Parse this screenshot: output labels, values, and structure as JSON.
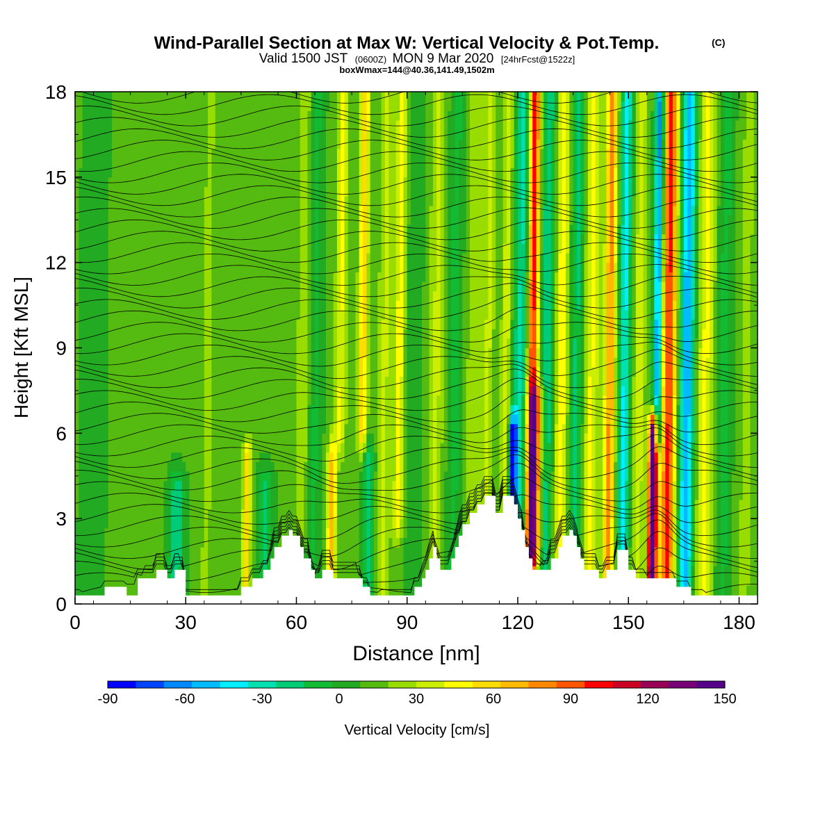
{
  "header": {
    "title": "Wind-Parallel Section at Max W: Vertical Velocity & Pot.Temp.",
    "title_mark": "(C)",
    "valid_a": "Valid 1500 JST",
    "valid_zulu": "(0600Z)",
    "valid_b": "MON 9 Mar 2020",
    "forecast": "[24hrFcst@1522z]",
    "box_info": "boxWmax=144@40.36,141.49,1502m"
  },
  "chart_data": {
    "type": "heatmap",
    "xlabel": "Distance [nm]",
    "ylabel": "Height [Kft MSL]",
    "xlim": [
      0,
      185
    ],
    "ylim": [
      0,
      18
    ],
    "x_ticks": [
      0,
      30,
      60,
      90,
      120,
      150,
      180
    ],
    "y_ticks": [
      0,
      3,
      6,
      9,
      12,
      15,
      18
    ],
    "x_tick_labels": [
      "0",
      "30",
      "60",
      "90",
      "120",
      "150",
      "180"
    ],
    "y_tick_labels": [
      "0",
      "3",
      "6",
      "9",
      "12",
      "15",
      "18"
    ],
    "grid": false,
    "colorbar": {
      "label": "Vertical Velocity [cm/s]",
      "min": -90,
      "max": 150,
      "step": 10,
      "tick_values": [
        -90,
        -60,
        -30,
        0,
        30,
        60,
        90,
        120,
        150
      ],
      "tick_labels": [
        "-90",
        "-60",
        "-30",
        "0",
        "30",
        "60",
        "90",
        "120",
        "150"
      ],
      "colors": [
        "#0000ff",
        "#0044ff",
        "#0088ff",
        "#00bbff",
        "#00eeff",
        "#00e0b0",
        "#00cc77",
        "#11bb33",
        "#22aa22",
        "#55bb11",
        "#99dd00",
        "#ccee00",
        "#ffff00",
        "#ffdd00",
        "#ffbb00",
        "#ff8800",
        "#ff5500",
        "#ff0000",
        "#cc0022",
        "#990055",
        "#770077",
        "#550088"
      ]
    },
    "terrain": [
      [
        0,
        0.3
      ],
      [
        8,
        0.3
      ],
      [
        8,
        0.6
      ],
      [
        14,
        0.6
      ],
      [
        14,
        0.3
      ],
      [
        17,
        0.3
      ],
      [
        17,
        0.9
      ],
      [
        22,
        0.9
      ],
      [
        22,
        1.2
      ],
      [
        25,
        1.2
      ],
      [
        25,
        0.9
      ],
      [
        27,
        0.9
      ],
      [
        27,
        1.2
      ],
      [
        30,
        1.2
      ],
      [
        30,
        0.3
      ],
      [
        45,
        0.3
      ],
      [
        45,
        0.6
      ],
      [
        48,
        0.6
      ],
      [
        48,
        0.9
      ],
      [
        51,
        0.9
      ],
      [
        51,
        1.2
      ],
      [
        53,
        1.2
      ],
      [
        53,
        1.6
      ],
      [
        54,
        1.6
      ],
      [
        54,
        2.0
      ],
      [
        56,
        2.0
      ],
      [
        56,
        2.4
      ],
      [
        58,
        2.4
      ],
      [
        58,
        2.6
      ],
      [
        59,
        2.6
      ],
      [
        59,
        2.4
      ],
      [
        61,
        2.4
      ],
      [
        61,
        2.0
      ],
      [
        62,
        2.0
      ],
      [
        62,
        1.6
      ],
      [
        64,
        1.6
      ],
      [
        64,
        1.2
      ],
      [
        65,
        1.2
      ],
      [
        65,
        0.9
      ],
      [
        67,
        0.9
      ],
      [
        67,
        1.2
      ],
      [
        70,
        1.2
      ],
      [
        70,
        0.9
      ],
      [
        78,
        0.9
      ],
      [
        78,
        0.6
      ],
      [
        80,
        0.6
      ],
      [
        80,
        0.3
      ],
      [
        92,
        0.3
      ],
      [
        92,
        0.6
      ],
      [
        94,
        0.6
      ],
      [
        94,
        0.9
      ],
      [
        95,
        0.9
      ],
      [
        95,
        1.2
      ],
      [
        96,
        1.2
      ],
      [
        96,
        1.6
      ],
      [
        97,
        1.6
      ],
      [
        97,
        2.0
      ],
      [
        98,
        2.0
      ],
      [
        98,
        1.6
      ],
      [
        99,
        1.6
      ],
      [
        99,
        1.2
      ],
      [
        102,
        1.2
      ],
      [
        102,
        1.6
      ],
      [
        103,
        1.6
      ],
      [
        103,
        2.0
      ],
      [
        104,
        2.0
      ],
      [
        104,
        2.4
      ],
      [
        105,
        2.4
      ],
      [
        105,
        2.8
      ],
      [
        107,
        2.8
      ],
      [
        107,
        3.2
      ],
      [
        109,
        3.2
      ],
      [
        109,
        3.5
      ],
      [
        111,
        3.5
      ],
      [
        111,
        3.8
      ],
      [
        114,
        3.8
      ],
      [
        114,
        3.2
      ],
      [
        116,
        3.2
      ],
      [
        116,
        3.8
      ],
      [
        119,
        3.8
      ],
      [
        119,
        3.5
      ],
      [
        120,
        3.5
      ],
      [
        120,
        3.0
      ],
      [
        121,
        3.0
      ],
      [
        121,
        2.6
      ],
      [
        122,
        2.6
      ],
      [
        122,
        2.0
      ],
      [
        123,
        2.0
      ],
      [
        123,
        1.6
      ],
      [
        124,
        1.6
      ],
      [
        124,
        1.2
      ],
      [
        129,
        1.2
      ],
      [
        129,
        1.6
      ],
      [
        131,
        1.6
      ],
      [
        131,
        2.0
      ],
      [
        132,
        2.0
      ],
      [
        132,
        2.4
      ],
      [
        134,
        2.4
      ],
      [
        134,
        2.6
      ],
      [
        135,
        2.6
      ],
      [
        135,
        2.4
      ],
      [
        136,
        2.4
      ],
      [
        136,
        2.0
      ],
      [
        137,
        2.0
      ],
      [
        137,
        1.6
      ],
      [
        138,
        1.6
      ],
      [
        138,
        1.2
      ],
      [
        142,
        1.2
      ],
      [
        142,
        0.9
      ],
      [
        144,
        0.9
      ],
      [
        144,
        1.2
      ],
      [
        147,
        1.2
      ],
      [
        147,
        1.9
      ],
      [
        150,
        1.9
      ],
      [
        150,
        1.2
      ],
      [
        152,
        1.2
      ],
      [
        152,
        0.9
      ],
      [
        163,
        0.9
      ],
      [
        163,
        0.6
      ],
      [
        167,
        0.6
      ],
      [
        167,
        0.3
      ],
      [
        185,
        0.3
      ]
    ],
    "velocity_features": [
      {
        "x": 5,
        "z0": 0,
        "z1": 18,
        "w": -12,
        "width": 3
      },
      {
        "x": 16,
        "z0": 0,
        "z1": 18,
        "w": 8,
        "width": 2
      },
      {
        "x": 28,
        "z0": 0,
        "z1": 4,
        "w": -30,
        "width": 2
      },
      {
        "x": 36,
        "z0": 0,
        "z1": 18,
        "w": 10,
        "width": 2
      },
      {
        "x": 47,
        "z0": 0,
        "z1": 5,
        "w": 45,
        "width": 1.1
      },
      {
        "x": 52,
        "z0": 1,
        "z1": 4,
        "w": -25,
        "width": 2
      },
      {
        "x": 62,
        "z0": 3,
        "z1": 18,
        "w": 15,
        "width": 2
      },
      {
        "x": 65,
        "z0": 0,
        "z1": 18,
        "w": -15,
        "width": 2
      },
      {
        "x": 70,
        "z0": 0,
        "z1": 5,
        "w": 50,
        "width": 1.3
      },
      {
        "x": 72,
        "z0": 6,
        "z1": 18,
        "w": 30,
        "width": 1.5
      },
      {
        "x": 78,
        "z0": 6,
        "z1": 18,
        "w": 45,
        "width": 1.3
      },
      {
        "x": 80,
        "z0": 0,
        "z1": 5,
        "w": -30,
        "width": 1.5
      },
      {
        "x": 84,
        "z0": 0,
        "z1": 18,
        "w": 20,
        "width": 1.8
      },
      {
        "x": 88,
        "z0": 3,
        "z1": 18,
        "w": 35,
        "width": 1.3
      },
      {
        "x": 92,
        "z0": 0,
        "z1": 18,
        "w": -10,
        "width": 2
      },
      {
        "x": 98,
        "z0": 2,
        "z1": 18,
        "w": 20,
        "width": 2
      },
      {
        "x": 103,
        "z0": 0,
        "z1": 18,
        "w": -15,
        "width": 2
      },
      {
        "x": 108,
        "z0": 3,
        "z1": 18,
        "w": 15,
        "width": 2
      },
      {
        "x": 112,
        "z0": 3,
        "z1": 18,
        "w": 20,
        "width": 1.5
      },
      {
        "x": 117,
        "z0": 3,
        "z1": 18,
        "w": 25,
        "width": 1.5
      },
      {
        "x": 119,
        "z0": 3,
        "z1": 6,
        "w": -85,
        "width": 1.0
      },
      {
        "x": 121,
        "z0": 0,
        "z1": 18,
        "w": -35,
        "width": 2.5
      },
      {
        "x": 124,
        "z0": 0,
        "z1": 18,
        "w": 90,
        "width": 1.5
      },
      {
        "x": 125,
        "z0": 2,
        "z1": 7,
        "w": 60,
        "width": 2
      },
      {
        "x": 128,
        "z0": 0,
        "z1": 18,
        "w": -30,
        "width": 1.8
      },
      {
        "x": 132,
        "z0": 0,
        "z1": 18,
        "w": 35,
        "width": 1.8
      },
      {
        "x": 136,
        "z0": 0,
        "z1": 18,
        "w": -25,
        "width": 2
      },
      {
        "x": 140,
        "z0": 0,
        "z1": 18,
        "w": 30,
        "width": 2.2
      },
      {
        "x": 145,
        "z0": 0,
        "z1": 18,
        "w": 60,
        "width": 1.5
      },
      {
        "x": 149,
        "z0": 0,
        "z1": 18,
        "w": -45,
        "width": 1.5
      },
      {
        "x": 153,
        "z0": 0,
        "z1": 18,
        "w": 25,
        "width": 1.5
      },
      {
        "x": 157,
        "z0": 0,
        "z1": 6,
        "w": 150,
        "width": 1.2
      },
      {
        "x": 158,
        "z0": 6,
        "z1": 18,
        "w": -70,
        "width": 1.2
      },
      {
        "x": 161,
        "z0": 0,
        "z1": 18,
        "w": 80,
        "width": 2.0
      },
      {
        "x": 166,
        "z0": 0,
        "z1": 18,
        "w": -60,
        "width": 2.0
      },
      {
        "x": 171,
        "z0": 0,
        "z1": 18,
        "w": 30,
        "width": 2.5
      },
      {
        "x": 176,
        "z0": 0,
        "z1": 18,
        "w": -15,
        "width": 2.5
      },
      {
        "x": 182,
        "z0": 0,
        "z1": 18,
        "w": 10,
        "width": 2.5
      }
    ]
  }
}
